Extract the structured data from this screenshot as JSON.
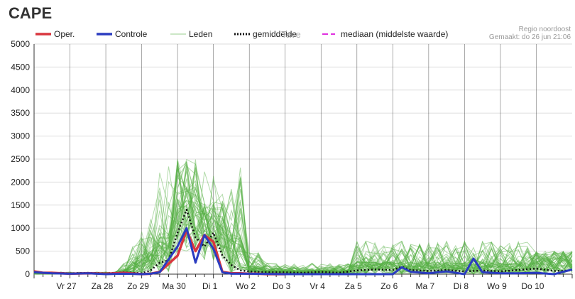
{
  "title": "CAPE",
  "region_label": "Regio noordoost",
  "made_label": "Gemaakt: do 26 jun 21:06",
  "watermark": "Tave",
  "colors": {
    "oper": "#d9363e",
    "controle": "#2b3cc0",
    "leden": "#55b043",
    "gemiddelde": "#111111",
    "mediaan": "#e030e0",
    "grid": "#000000",
    "hgrid": "#dddddd"
  },
  "legend": [
    {
      "key": "oper",
      "label": "Oper.",
      "style": "solid-thick"
    },
    {
      "key": "controle",
      "label": "Controle",
      "style": "solid-thick"
    },
    {
      "key": "leden",
      "label": "Leden",
      "style": "solid-thin"
    },
    {
      "key": "gemiddelde",
      "label": "gemiddelde",
      "style": "dotted"
    },
    {
      "key": "mediaan",
      "label": "mediaan (middelste waarde)",
      "style": "dashed"
    }
  ],
  "chart_data": {
    "type": "line",
    "ylim": [
      0,
      5000
    ],
    "yticks": [
      0,
      500,
      1000,
      1500,
      2000,
      2500,
      3000,
      3500,
      4000,
      4500,
      5000
    ],
    "xlim": [
      0,
      15
    ],
    "day_labels": [
      "Vr 27",
      "Za 28",
      "Zo 29",
      "Ma 30",
      "Di 1",
      "Wo 2",
      "Do 3",
      "Vr 4",
      "Za 5",
      "Zo 6",
      "Ma 7",
      "Di 8",
      "Wo 9",
      "Do 10"
    ],
    "x_unit": "days",
    "grid": true,
    "legend_position": "top",
    "series": [
      {
        "name": "Oper.",
        "x": [
          0,
          0.25,
          0.5,
          1,
          1.5,
          2,
          2.5,
          3,
          3.25,
          3.5,
          4,
          4.25,
          4.5,
          4.75,
          5,
          5.25,
          5.5,
          5.75,
          6,
          6.25,
          6.5,
          7
        ],
        "y": [
          60,
          30,
          30,
          10,
          20,
          10,
          30,
          0,
          10,
          50,
          400,
          950,
          500,
          850,
          700,
          50,
          20,
          20,
          10,
          10,
          0,
          0
        ]
      },
      {
        "name": "Controle",
        "x": [
          0,
          0.5,
          1,
          1.5,
          2,
          2.5,
          3,
          3.25,
          3.5,
          4,
          4.25,
          4.5,
          4.75,
          5,
          5.25,
          5.5,
          6,
          7,
          8,
          9,
          10,
          10.25,
          10.5,
          11,
          11.5,
          12,
          12.25,
          12.5,
          13,
          13.5,
          14,
          14.5,
          15
        ],
        "y": [
          40,
          20,
          10,
          20,
          0,
          10,
          0,
          10,
          40,
          600,
          1000,
          250,
          850,
          550,
          40,
          10,
          10,
          0,
          0,
          0,
          0,
          150,
          50,
          20,
          60,
          0,
          340,
          40,
          20,
          20,
          30,
          0,
          100
        ]
      },
      {
        "name": "gemiddelde",
        "x": [
          0,
          0.5,
          1,
          1.5,
          2,
          2.5,
          3,
          3.25,
          3.5,
          3.75,
          4,
          4.25,
          4.5,
          4.75,
          5,
          5.25,
          5.5,
          5.75,
          6,
          6.5,
          7,
          7.5,
          8,
          8.5,
          9,
          9.5,
          10,
          10.25,
          10.5,
          11,
          11.5,
          12,
          12.5,
          13,
          13.5,
          14,
          14.5,
          15
        ],
        "y": [
          40,
          30,
          20,
          30,
          20,
          40,
          20,
          80,
          250,
          300,
          900,
          1400,
          800,
          600,
          900,
          400,
          200,
          80,
          60,
          40,
          40,
          30,
          50,
          30,
          80,
          100,
          90,
          160,
          90,
          70,
          90,
          60,
          80,
          60,
          90,
          120,
          70,
          80
        ]
      }
    ],
    "members_count": 50
  }
}
